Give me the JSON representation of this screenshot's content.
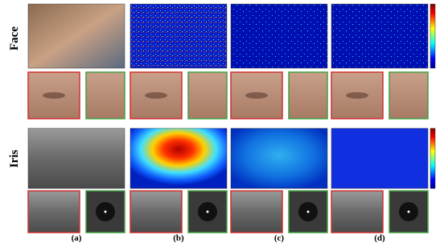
{
  "rows": [
    {
      "label": "Face"
    },
    {
      "label": "Iris"
    }
  ],
  "columns": [
    "(a)",
    "(b)",
    "(c)",
    "(d)"
  ]
}
